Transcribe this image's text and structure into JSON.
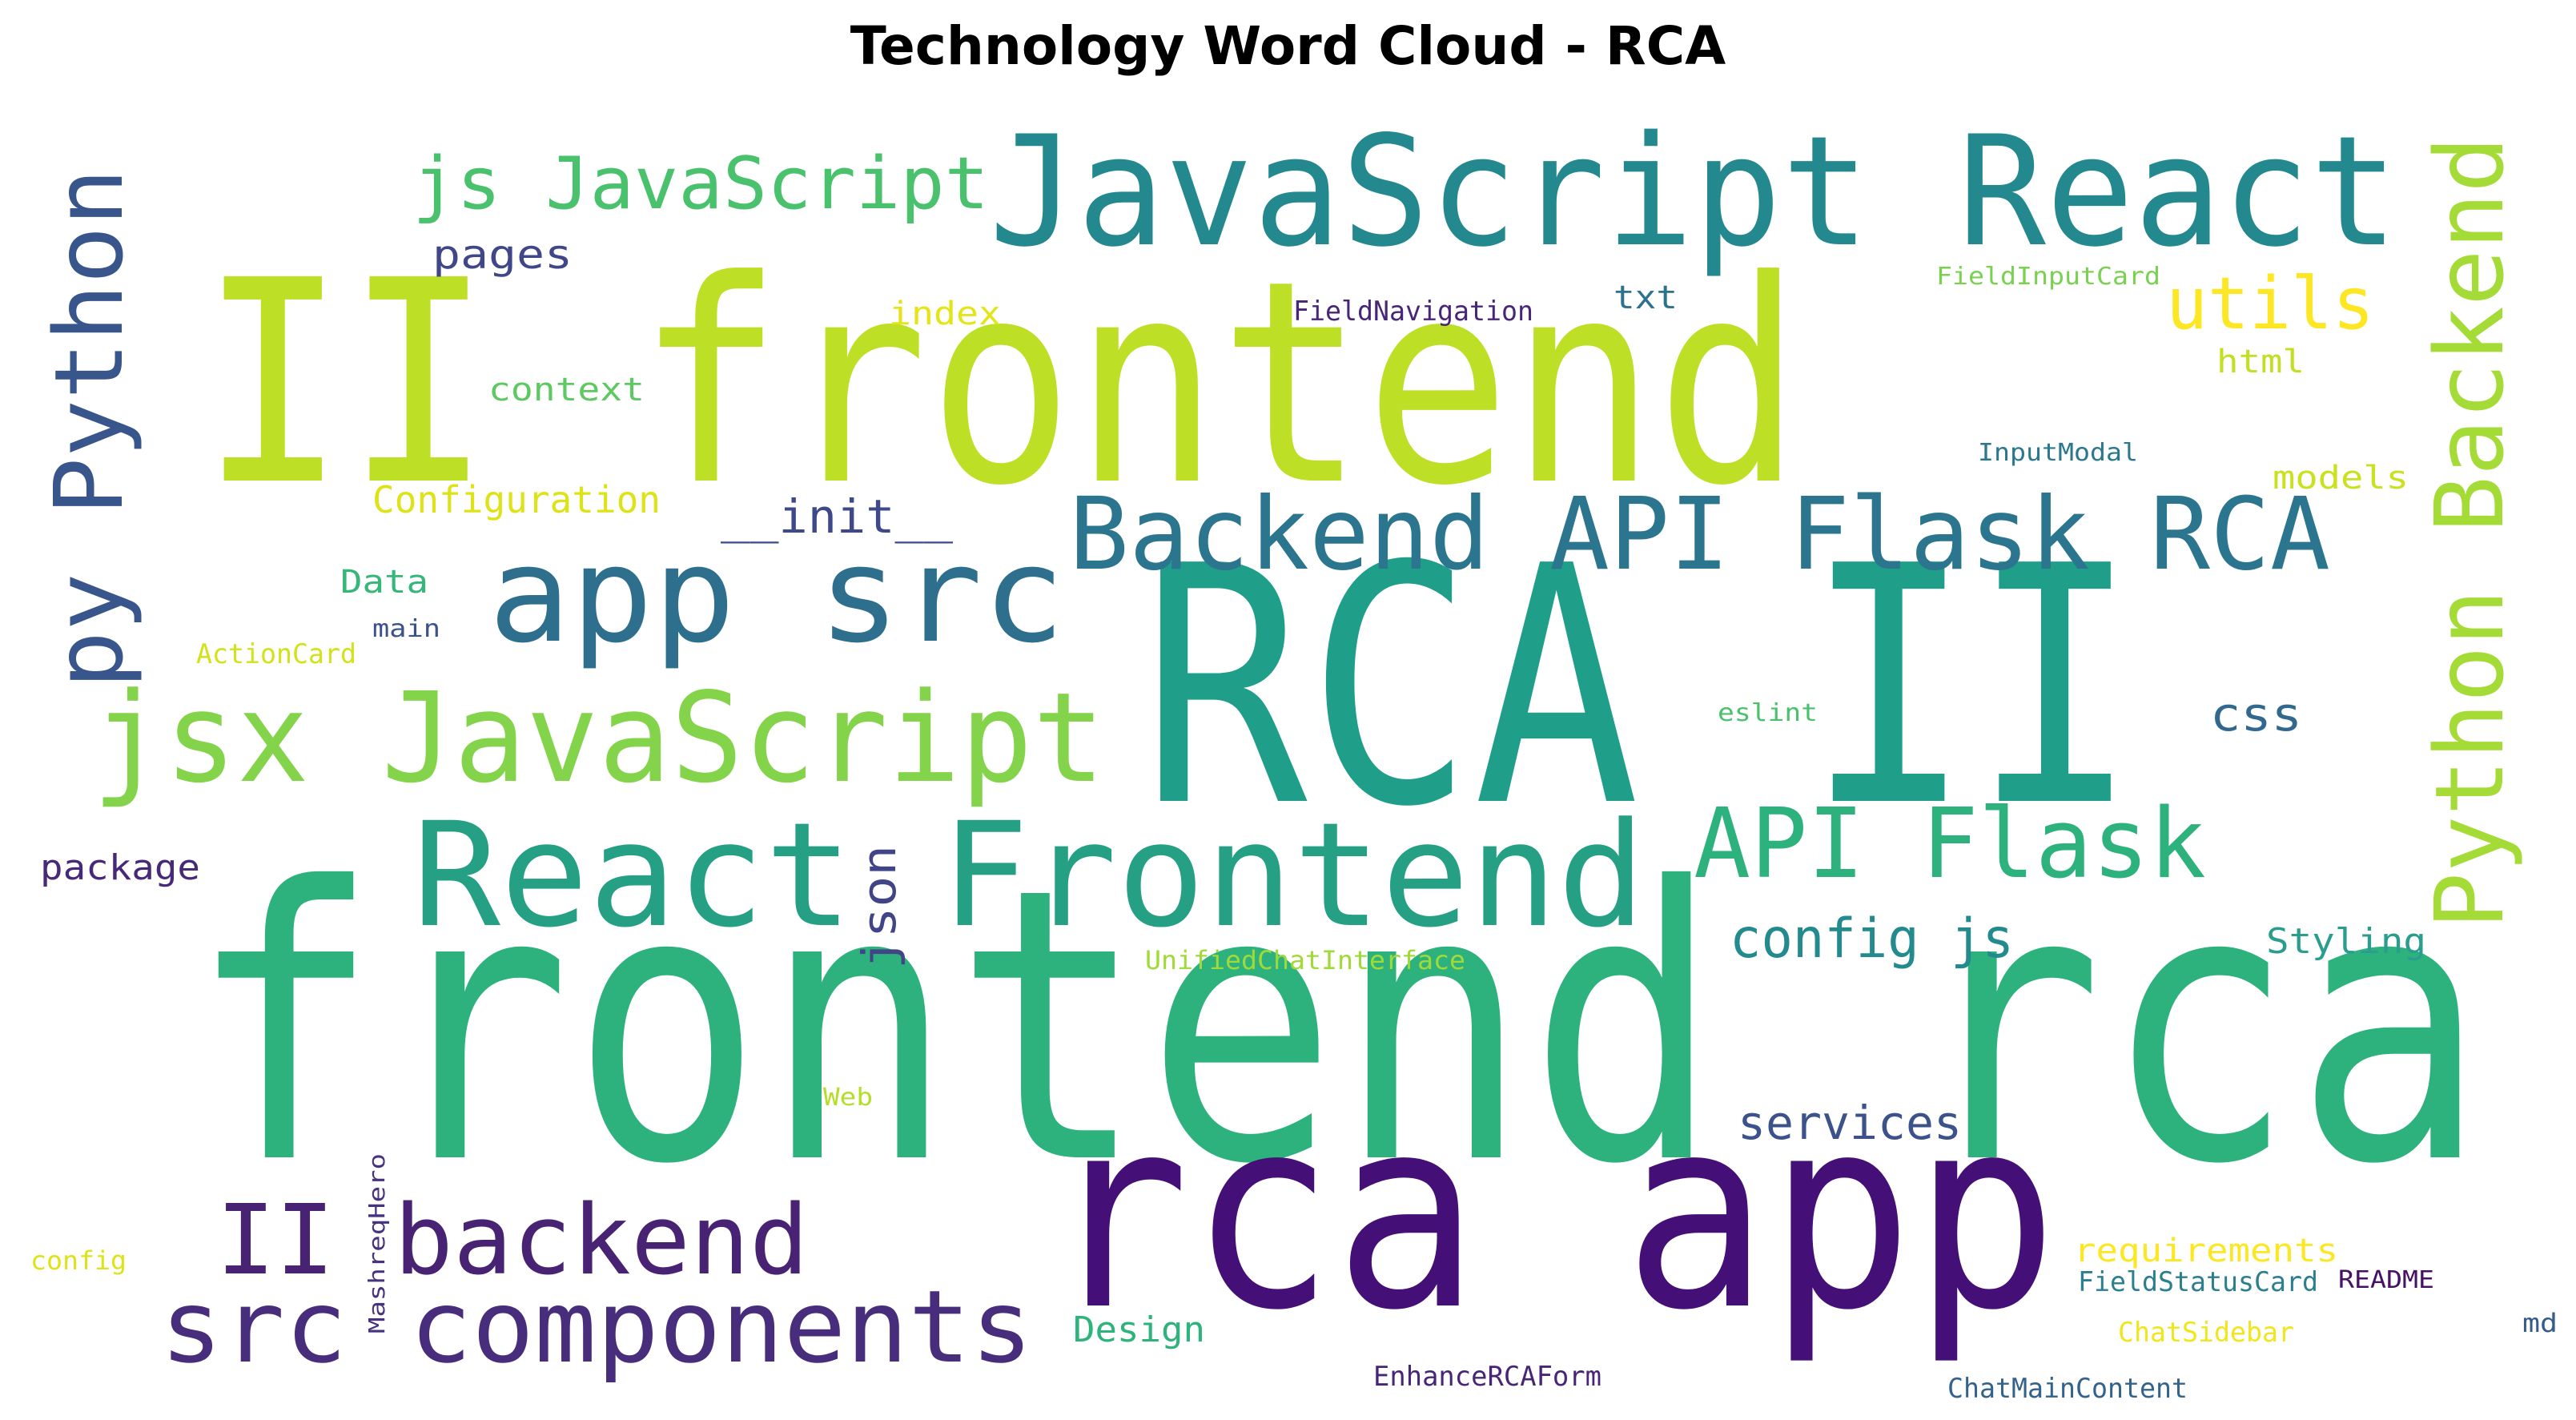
{
  "title": "Technology Word Cloud - RCA",
  "words": [
    {
      "text": "frontend rca",
      "color": "#2db27d"
    },
    {
      "text": "rca app",
      "color": "#440f76"
    },
    {
      "text": "RCA II",
      "color": "#1f9e89"
    },
    {
      "text": "II frontend",
      "color": "#bddf26"
    },
    {
      "text": "JavaScript React",
      "color": "#23898e"
    },
    {
      "text": "React Frontend",
      "color": "#25a085"
    },
    {
      "text": "Backend API Flask RCA",
      "color": "#2b758e"
    },
    {
      "text": "app src",
      "color": "#2e6f8e"
    },
    {
      "text": "jsx JavaScript",
      "color": "#84d44b"
    },
    {
      "text": "src components",
      "color": "#472d7b"
    },
    {
      "text": "II backend",
      "color": "#482374"
    },
    {
      "text": "API Flask",
      "color": "#2db27d"
    },
    {
      "text": "Python Backend",
      "color": "#a5db36"
    },
    {
      "text": "py Python",
      "color": "#39568c"
    },
    {
      "text": "js JavaScript",
      "color": "#4ac16d"
    },
    {
      "text": "utils",
      "color": "#fde725"
    },
    {
      "text": "config js",
      "color": "#238a8d"
    },
    {
      "text": "json",
      "color": "#414487"
    },
    {
      "text": "services",
      "color": "#3b528b"
    },
    {
      "text": "css",
      "color": "#31688e"
    },
    {
      "text": "__init__",
      "color": "#3e4989"
    },
    {
      "text": "Configuration",
      "color": "#dde318"
    },
    {
      "text": "pages",
      "color": "#3f4788"
    },
    {
      "text": "context",
      "color": "#5ec962"
    },
    {
      "text": "index",
      "color": "#e5e419"
    },
    {
      "text": "FieldNavigation",
      "color": "#482677"
    },
    {
      "text": "txt",
      "color": "#2c728e"
    },
    {
      "text": "FieldInputCard",
      "color": "#7ad151"
    },
    {
      "text": "html",
      "color": "#c2df23"
    },
    {
      "text": "InputModal",
      "color": "#2a788e"
    },
    {
      "text": "models",
      "color": "#cae11f"
    },
    {
      "text": "Data",
      "color": "#35b779"
    },
    {
      "text": "main",
      "color": "#3b528b"
    },
    {
      "text": "ActionCard",
      "color": "#d2e21b"
    },
    {
      "text": "eslint",
      "color": "#4ac16d"
    },
    {
      "text": "package",
      "color": "#482878"
    },
    {
      "text": "Styling",
      "color": "#2a9d8f"
    },
    {
      "text": "UnifiedChatInterface",
      "color": "#a0da39"
    },
    {
      "text": "Web",
      "color": "#b5de2b"
    },
    {
      "text": "MashreqHero",
      "color": "#46327e"
    },
    {
      "text": "config",
      "color": "#dde318"
    },
    {
      "text": "Design",
      "color": "#2eb37c"
    },
    {
      "text": "requirements",
      "color": "#fde725"
    },
    {
      "text": "FieldStatusCard",
      "color": "#2c7f8e"
    },
    {
      "text": "README",
      "color": "#471164"
    },
    {
      "text": "ChatSidebar",
      "color": "#f1e51d"
    },
    {
      "text": "md",
      "color": "#365c8d"
    },
    {
      "text": "EnhanceRCAForm",
      "color": "#482677"
    },
    {
      "text": "ChatMainContent",
      "color": "#33638d"
    }
  ]
}
